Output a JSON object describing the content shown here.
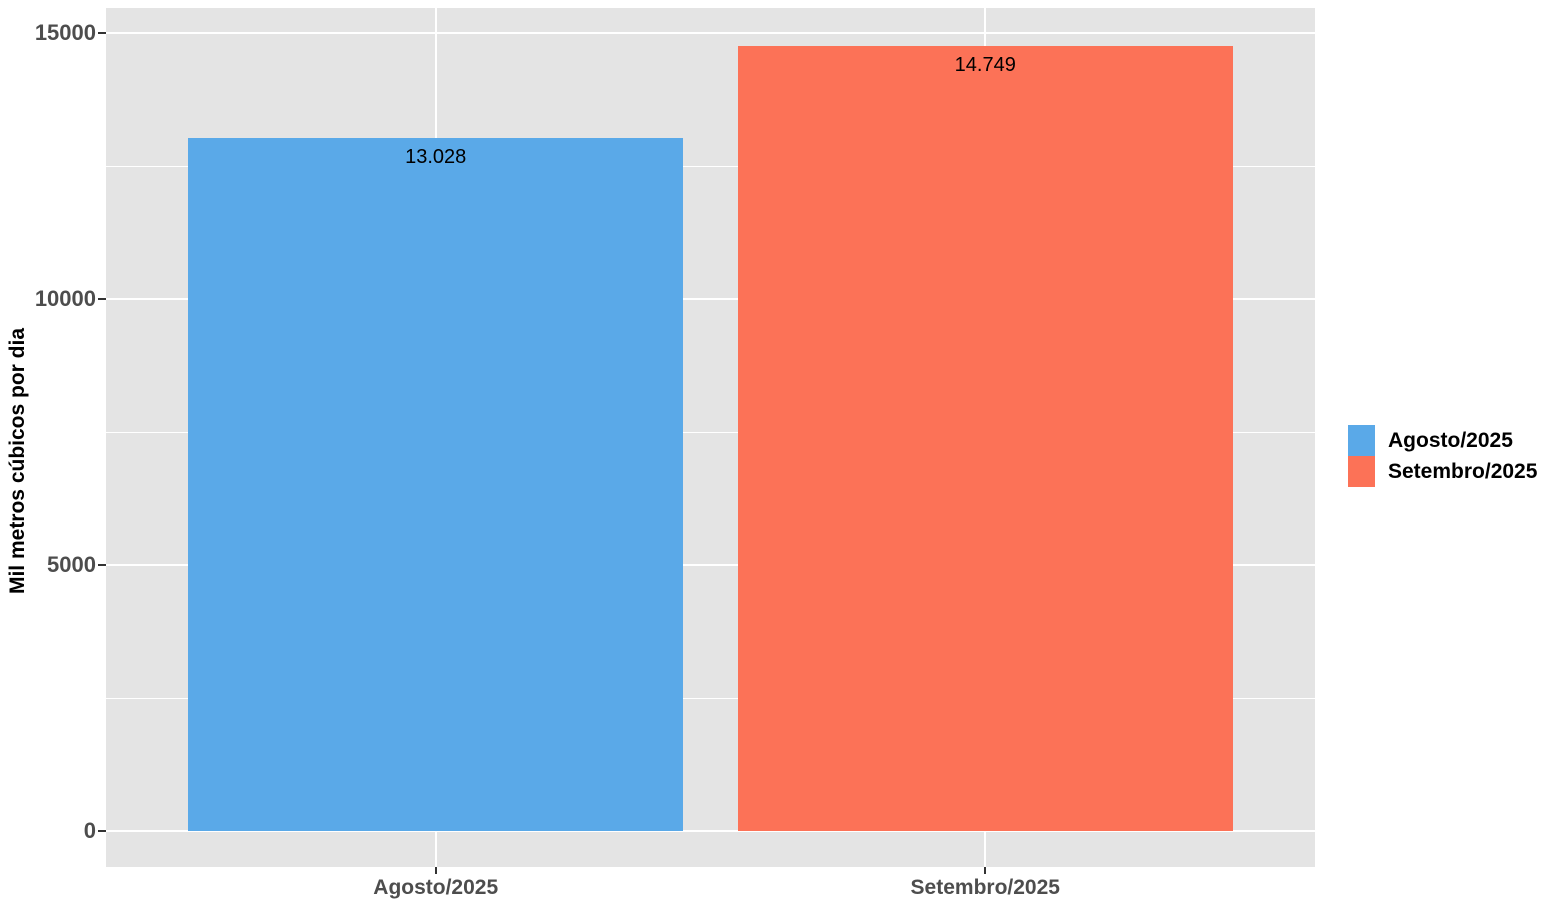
{
  "chart_data": {
    "type": "bar",
    "categories": [
      "Agosto/2025",
      "Setembro/2025"
    ],
    "values": [
      13028,
      14749
    ],
    "value_labels": [
      "13.028",
      "14.749"
    ],
    "series_colors": [
      "#5AA9E8",
      "#FC7257"
    ],
    "title": "",
    "xlabel": "",
    "ylabel": "Mil metros cúbicos por dia",
    "ylim": [
      0,
      15000
    ],
    "y_major_ticks": [
      0,
      5000,
      10000,
      15000
    ],
    "y_major_tick_labels": [
      "0",
      "5000",
      "10000",
      "15000"
    ],
    "y_minor_ticks": [
      2500,
      7500,
      12500
    ],
    "grid": true,
    "legend_position": "right"
  },
  "legend": {
    "entries": [
      {
        "label": "Agosto/2025",
        "color": "#5AA9E8"
      },
      {
        "label": "Setembro/2025",
        "color": "#FC7257"
      }
    ]
  },
  "colors": {
    "panel_background": "#E4E4E4",
    "gridline": "#FFFFFF",
    "tick_text": "#4D4D4D",
    "axis_title_text": "#000000",
    "bar_value_text": "#000000"
  }
}
